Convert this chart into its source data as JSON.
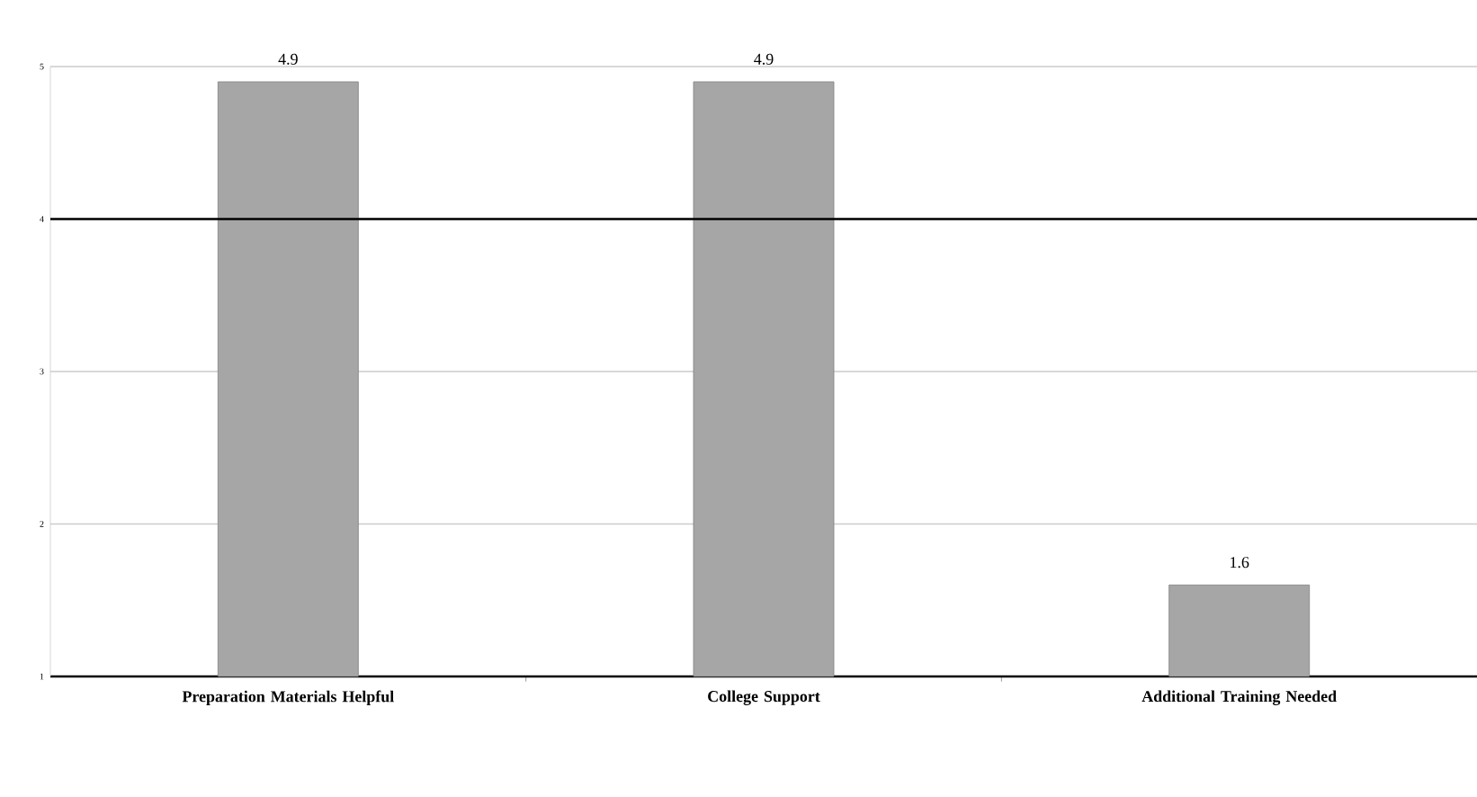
{
  "chart_data": {
    "type": "bar",
    "categories": [
      "Preparation Materials Helpful",
      "College Support",
      "Additional Training Needed"
    ],
    "values": [
      4.9,
      4.9,
      1.6
    ],
    "color": "#a6a6a6",
    "ylim": [
      1,
      5
    ],
    "yticks": [
      1,
      2,
      3,
      4,
      5
    ],
    "grid": "y",
    "data_labels": true,
    "ref_lines": [
      {
        "axis": "y",
        "value": 4,
        "color": "#000000"
      }
    ]
  }
}
